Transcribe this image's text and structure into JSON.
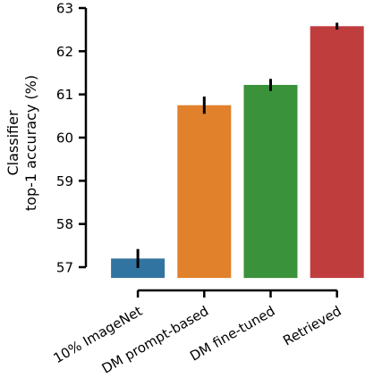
{
  "chart_data": {
    "type": "bar",
    "title": "",
    "xlabel": "",
    "ylabel_lines": [
      "Classifier",
      "top-1 accuracy (%)"
    ],
    "categories": [
      "10% ImageNet",
      "DM prompt-based",
      "DM fine-tuned",
      "Retrieved"
    ],
    "values": [
      57.2,
      60.75,
      61.22,
      62.58
    ],
    "errors": [
      0.22,
      0.2,
      0.14,
      0.08
    ],
    "colors": [
      "#3274a1",
      "#e1812c",
      "#3a923a",
      "#c03d3e"
    ],
    "ylim": [
      56.75,
      63.0
    ],
    "yticks": [
      57,
      58,
      59,
      60,
      61,
      62,
      63
    ],
    "grid": false,
    "legend": "none"
  }
}
